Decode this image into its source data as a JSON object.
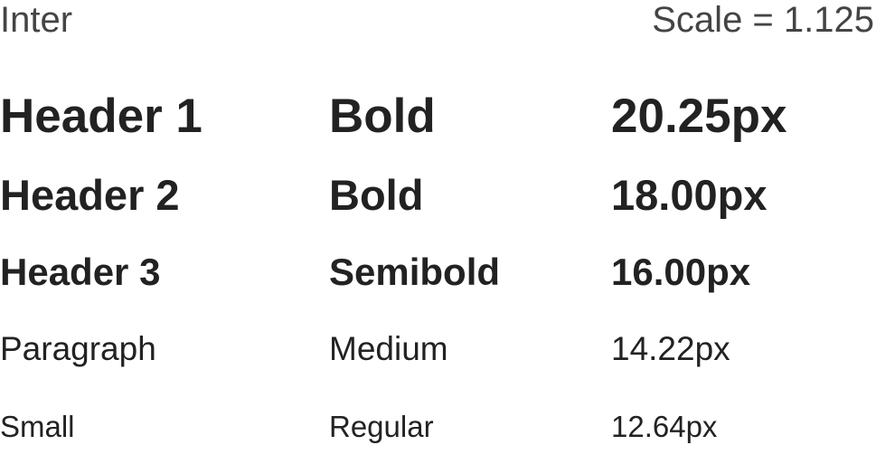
{
  "header": {
    "font_name": "Inter",
    "scale_label": "Scale = 1.125"
  },
  "rows": [
    {
      "name": "Header 1",
      "weight": "Bold",
      "size": "20.25px"
    },
    {
      "name": "Header 2",
      "weight": "Bold",
      "size": "18.00px"
    },
    {
      "name": "Header 3",
      "weight": "Semibold",
      "size": "16.00px"
    },
    {
      "name": "Paragraph",
      "weight": "Medium",
      "size": "14.22px"
    },
    {
      "name": "Small",
      "weight": "Regular",
      "size": "12.64px"
    }
  ],
  "colors": {
    "text": "#222222",
    "muted_text": "#444444",
    "background": "#ffffff"
  }
}
